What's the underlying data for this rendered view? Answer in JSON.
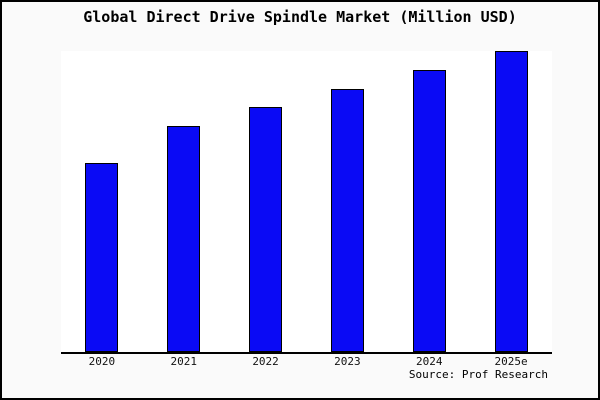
{
  "chart": {
    "title": "Global Direct Drive Spindle Market (Million USD)",
    "source": "Source: Prof Research"
  },
  "chart_data": {
    "type": "bar",
    "title": "Global Direct Drive Spindle Market (Million USD)",
    "categories": [
      "2020",
      "2021",
      "2022",
      "2023",
      "2024",
      "2025e"
    ],
    "values": [
      62.7,
      75.0,
      81.3,
      87.3,
      93.7,
      100.0
    ],
    "xlabel": "",
    "ylabel": "",
    "ylim": [
      0,
      100
    ],
    "grid": false,
    "legend": "none",
    "y_axis_labels_visible": false,
    "annotations": [
      "Source: Prof Research"
    ],
    "colors": {
      "bar_fill": "#0a0af5",
      "bar_border": "#000000",
      "axis": "#000000",
      "canvas_background": "#fafafa",
      "plot_background": "#ffffff",
      "frame_border": "#000000",
      "text": "#000000"
    }
  }
}
